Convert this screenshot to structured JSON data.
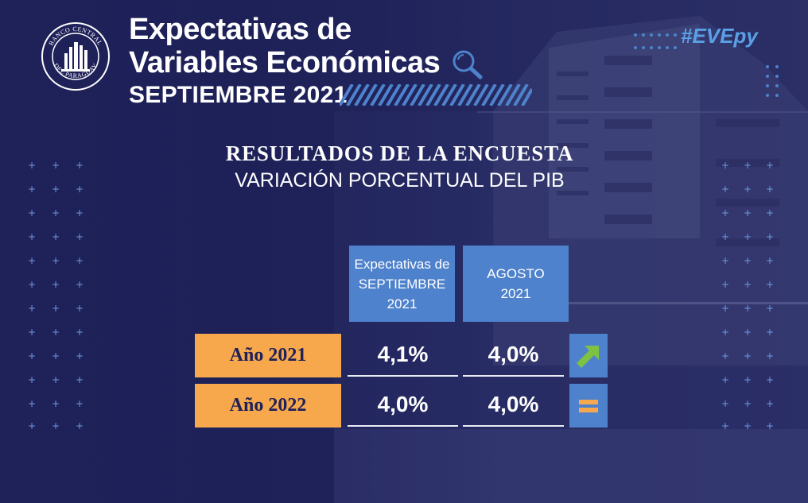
{
  "header": {
    "title_line1": "Expectativas de",
    "title_line2": "Variables Económicas",
    "month": "SEPTIEMBRE 2021",
    "hashtag": "#EVEpy"
  },
  "logo": {
    "text": "BANCO CENTRAL DEL PARAGUAY",
    "icon": "bcp-seal-logo"
  },
  "section": {
    "heading": "RESULTADOS DE LA ENCUESTA",
    "subheading": "VARIACIÓN PORCENTUAL DEL PIB"
  },
  "table": {
    "columns": [
      {
        "line1": "Expectativas de",
        "line2": "SEPTIEMBRE",
        "line3": "2021"
      },
      {
        "line1": "AGOSTO",
        "line2": "2021"
      }
    ],
    "rows": [
      {
        "label": "Año 2021",
        "current": "4,1%",
        "previous": "4,0%",
        "trend": "up-arrow-icon"
      },
      {
        "label": "Año 2022",
        "current": "4,0%",
        "previous": "4,0%",
        "trend": "equals-icon"
      }
    ]
  },
  "colors": {
    "background": "#1f2159",
    "accent_blue": "#4e82cc",
    "accent_orange": "#f7a84c",
    "arrow_green": "#7dc243",
    "hashtag_blue": "#5aa0e6"
  }
}
